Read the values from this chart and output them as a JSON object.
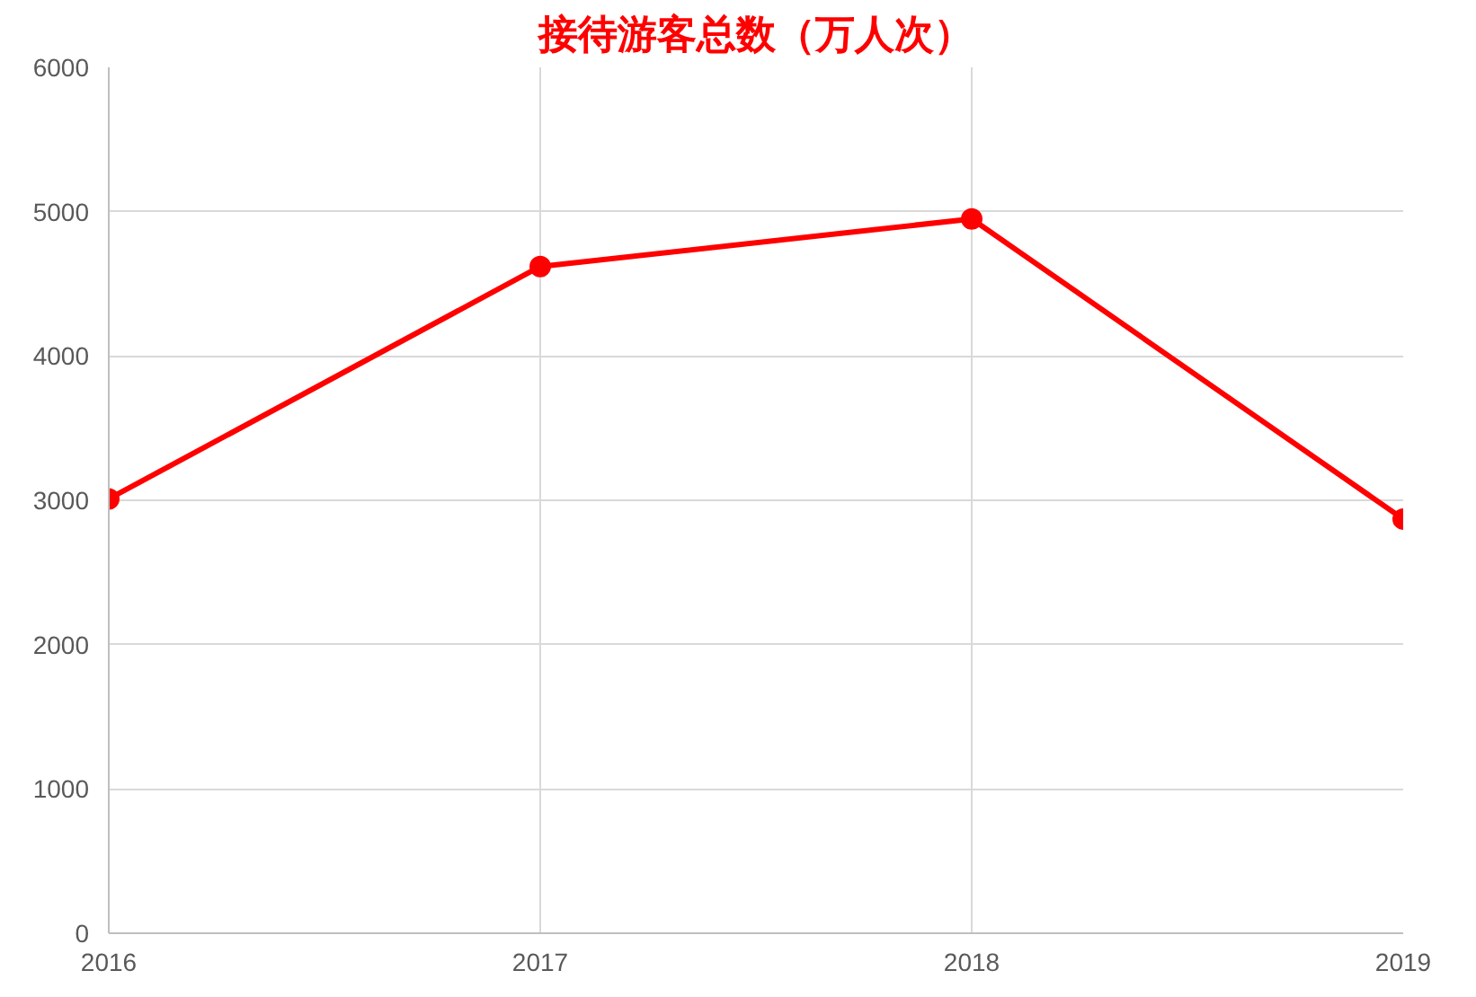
{
  "chart_data": {
    "type": "line",
    "title": "接待游客总数（万人次）",
    "categories": [
      "2016",
      "2017",
      "2018",
      "2019"
    ],
    "series": [
      {
        "color": "#ff0000",
        "values": [
          3010,
          4620,
          4950,
          2870
        ]
      }
    ],
    "ylim": [
      0,
      6000
    ],
    "yticks": [
      0,
      1000,
      2000,
      3000,
      4000,
      5000,
      6000
    ],
    "grid": true,
    "marker": "circle",
    "line_style": "solid"
  }
}
